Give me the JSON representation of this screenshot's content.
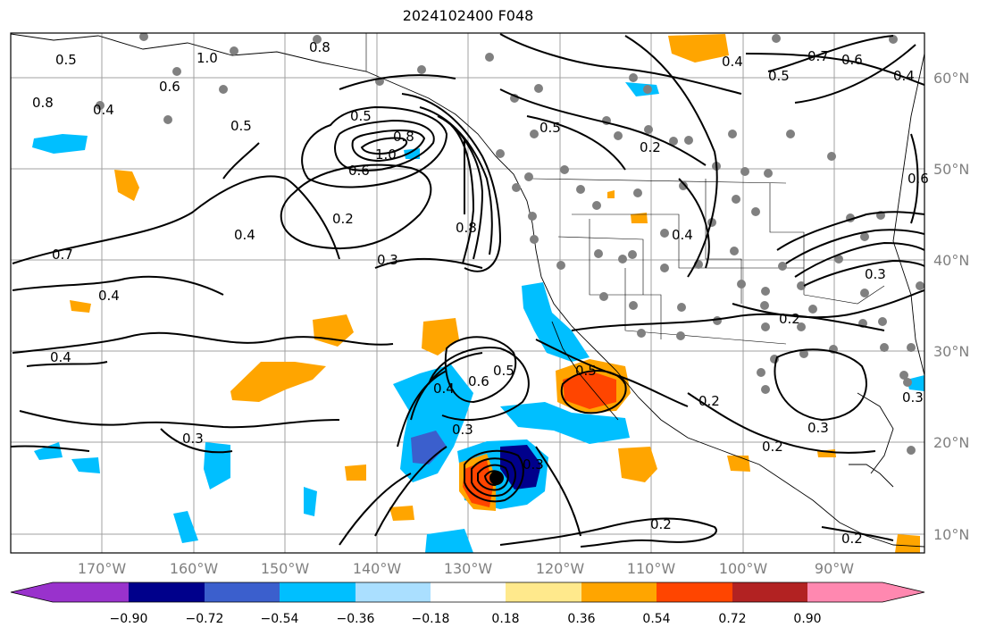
{
  "title": "2024102400 F048",
  "lat_labels": [
    "60°N",
    "50°N",
    "40°N",
    "30°N",
    "20°N",
    "10°N"
  ],
  "lon_labels": [
    "170°W",
    "160°W",
    "150°W",
    "140°W",
    "130°W",
    "120°W",
    "110°W",
    "100°W",
    "90°W"
  ],
  "colorbar": {
    "colors": [
      "#9932cc",
      "#00008b",
      "#3b5fcd",
      "#00bfff",
      "#aadfff",
      "#ffffff",
      "#ffe98c",
      "#ffa500",
      "#ff4500",
      "#b22222",
      "#ff88b0"
    ],
    "tick_labels": [
      "−0.90",
      "−0.72",
      "−0.54",
      "−0.36",
      "−0.18",
      "0.18",
      "0.36",
      "0.54",
      "0.72",
      "0.90"
    ]
  },
  "contour_labels": [
    "0.8",
    "0.5",
    "0.4",
    "0.6",
    "1.0",
    "0.5",
    "0.8",
    "0.5",
    "0.2",
    "0.4",
    "0.7",
    "0.4",
    "0.3",
    "0.4",
    "0.5",
    "0.4",
    "0.6",
    "0.5",
    "0.3",
    "0.3",
    "0.5",
    "0.2",
    "0.4",
    "0.2",
    "0.3",
    "0.2",
    "0.2",
    "0.3",
    "0.2",
    "0.3",
    "0.2",
    "0.6",
    "0.7",
    "0.6",
    "0.4",
    "0.8",
    "0.6",
    "0.5",
    "0.4",
    "0.3",
    "1.0",
    "0.8"
  ]
}
